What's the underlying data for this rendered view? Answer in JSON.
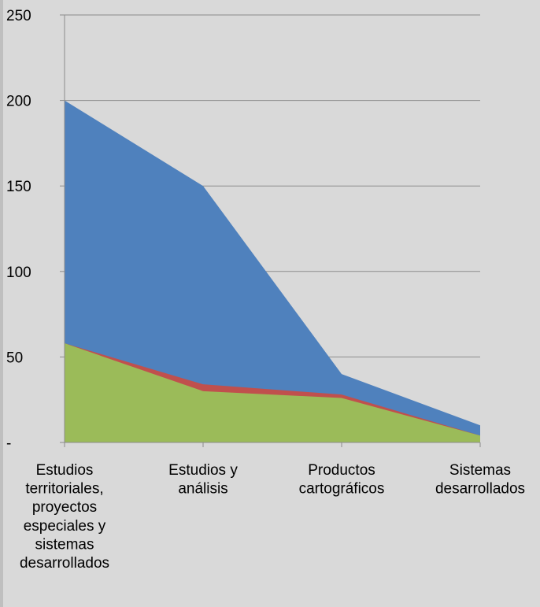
{
  "chart_data": {
    "type": "area",
    "title": "",
    "xlabel": "",
    "ylabel": "",
    "ylim": [
      0,
      250
    ],
    "yticks": [
      {
        "value": 0,
        "label": "-"
      },
      {
        "value": 50,
        "label": "50"
      },
      {
        "value": 100,
        "label": "100"
      },
      {
        "value": 150,
        "label": "150"
      },
      {
        "value": 200,
        "label": "200"
      },
      {
        "value": 250,
        "label": "250"
      }
    ],
    "grid": true,
    "legend": "none",
    "categories": [
      [
        "Estudios",
        "territoriales,",
        "proyectos",
        "especiales y",
        "sistemas",
        "desarrollados"
      ],
      [
        "Estudios y",
        "análisis"
      ],
      [
        "Productos",
        "cartográficos"
      ],
      [
        "Sistemas",
        "desarrollados"
      ]
    ],
    "series": [
      {
        "values": [
          200,
          150,
          40,
          10
        ],
        "color": "#4f81bd"
      },
      {
        "values": [
          58,
          34,
          28,
          4
        ],
        "color": "#c0504d"
      },
      {
        "values": [
          58,
          30,
          26,
          4
        ],
        "color": "#9bbb59"
      }
    ]
  }
}
